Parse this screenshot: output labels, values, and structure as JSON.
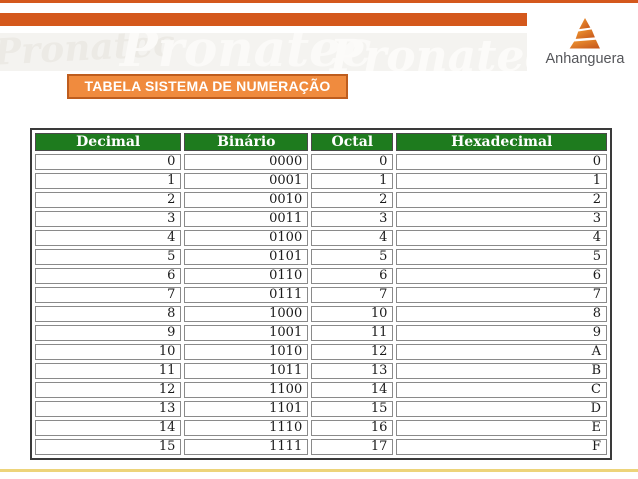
{
  "header": {
    "title": "TABELA SISTEMA DE NUMERAÇÃO"
  },
  "logo": {
    "name": "Anhanguera",
    "icon": "anhanguera-triangle-icon"
  },
  "watermark": {
    "w1": "Pronatec",
    "w2": "Pronatec",
    "w3": "Pronatec"
  },
  "colors": {
    "accent_orange": "#D4581C",
    "banner_fill": "#F08B3E",
    "banner_border": "#BE5D1E",
    "header_green": "#1E7B1E",
    "table_outer_border": "#3A3A3A",
    "cell_border": "#8A8A8A",
    "bottom_line_yellow": "#EDD47A",
    "logo_orange_light": "#F29A33",
    "logo_orange_dark": "#C4531A",
    "logo_text_gray": "#55565A"
  },
  "table": {
    "headers": [
      "Decimal",
      "Binário",
      "Octal",
      "Hexadecimal"
    ],
    "rows": [
      [
        "0",
        "0000",
        "0",
        "0"
      ],
      [
        "1",
        "0001",
        "1",
        "1"
      ],
      [
        "2",
        "0010",
        "2",
        "2"
      ],
      [
        "3",
        "0011",
        "3",
        "3"
      ],
      [
        "4",
        "0100",
        "4",
        "4"
      ],
      [
        "5",
        "0101",
        "5",
        "5"
      ],
      [
        "6",
        "0110",
        "6",
        "6"
      ],
      [
        "7",
        "0111",
        "7",
        "7"
      ],
      [
        "8",
        "1000",
        "10",
        "8"
      ],
      [
        "9",
        "1001",
        "11",
        "9"
      ],
      [
        "10",
        "1010",
        "12",
        "A"
      ],
      [
        "11",
        "1011",
        "13",
        "B"
      ],
      [
        "12",
        "1100",
        "14",
        "C"
      ],
      [
        "13",
        "1101",
        "15",
        "D"
      ],
      [
        "14",
        "1110",
        "16",
        "E"
      ],
      [
        "15",
        "1111",
        "17",
        "F"
      ]
    ]
  }
}
